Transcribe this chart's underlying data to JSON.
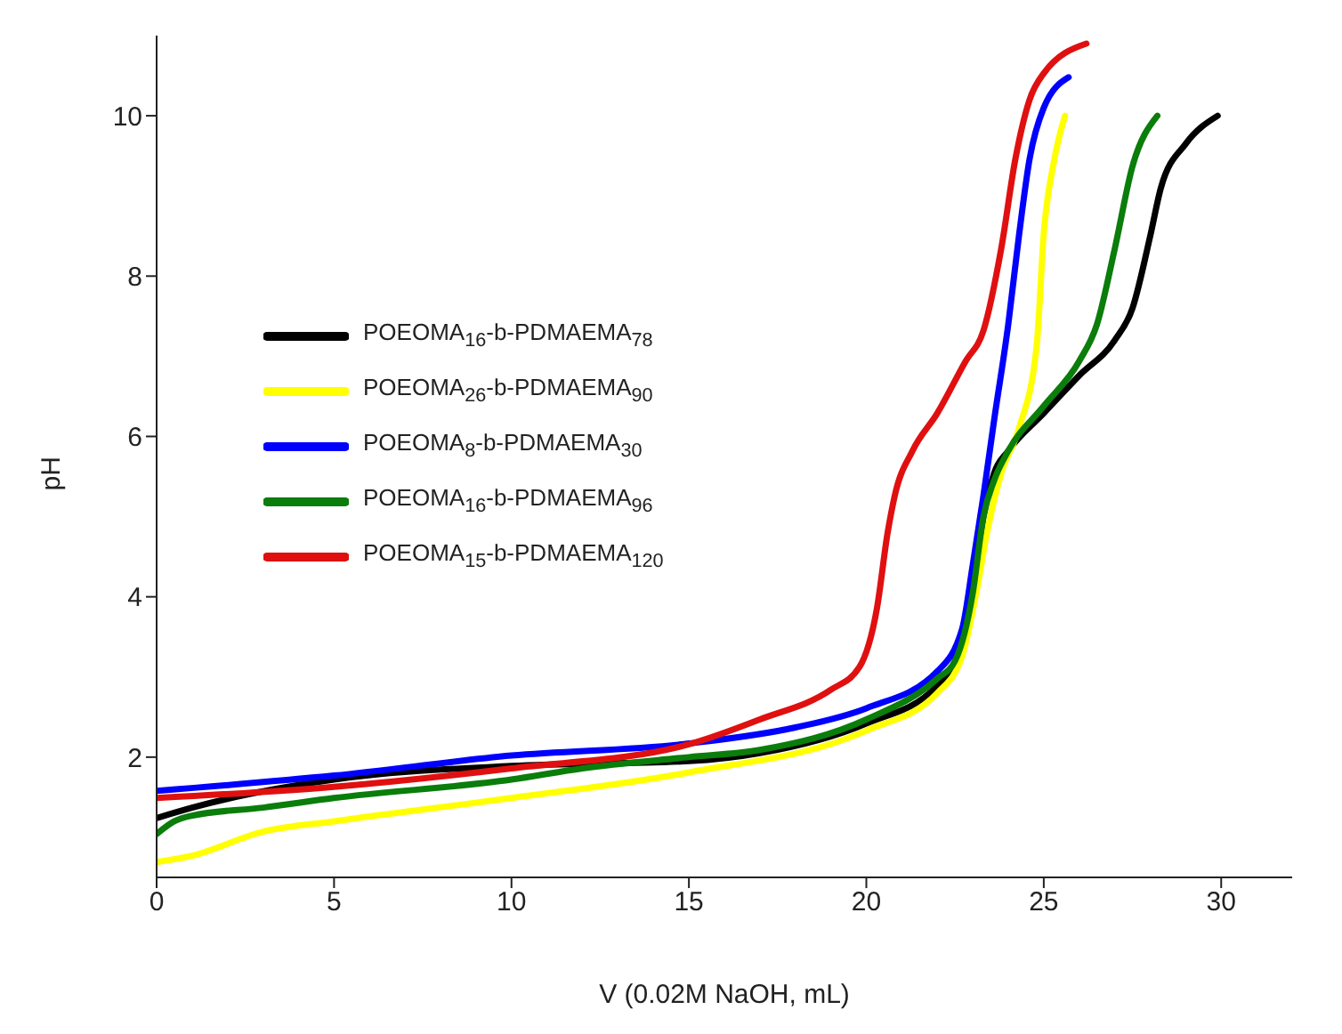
{
  "chart_data": {
    "type": "line",
    "xlabel": "V (0.02M NaOH, mL)",
    "ylabel": "pH",
    "xlim": [
      0,
      32
    ],
    "ylim": [
      0.5,
      11
    ],
    "xticks": [
      0,
      5,
      10,
      15,
      20,
      25,
      30
    ],
    "yticks": [
      2,
      4,
      6,
      8,
      10
    ],
    "grid": false,
    "legend": "left",
    "marker": "none",
    "line_style": "solid",
    "series": [
      {
        "name": "POEOMA$_{16}$-b-PDMAEMA$_{78}$",
        "color": "#000000",
        "x": [
          0,
          1,
          5,
          10,
          15,
          17,
          20,
          22,
          22.5,
          23,
          23.3,
          23.6,
          24,
          25,
          26,
          27,
          27.5,
          28,
          28.3,
          29,
          29.9
        ],
        "values": [
          1.24,
          1.37,
          1.72,
          1.89,
          1.95,
          2.05,
          2.42,
          2.89,
          3.2,
          4.05,
          5.0,
          5.54,
          5.82,
          6.29,
          6.76,
          7.2,
          7.6,
          8.5,
          9.1,
          9.65,
          10
        ]
      },
      {
        "name": "POEOMA$_{26}$-b-PDMAEMA$_{90}$",
        "color": "#ffff00",
        "x": [
          0,
          1,
          3,
          5,
          10,
          15,
          20,
          22,
          22.7,
          23.1,
          23.4,
          23.8,
          24.3,
          24.8,
          25,
          25.3,
          25.6
        ],
        "values": [
          0.69,
          0.77,
          1.07,
          1.2,
          1.49,
          1.81,
          2.33,
          2.8,
          3.26,
          4.05,
          4.8,
          5.54,
          6.1,
          7.13,
          8.53,
          9.46,
          10
        ]
      },
      {
        "name": "POEOMA$_{8}$-b-PDMAEMA$_{30}$",
        "color": "#0000ff",
        "x": [
          0,
          5,
          10,
          15,
          18,
          20,
          22,
          22.7,
          23,
          23.3,
          23.6,
          24,
          24.3,
          24.6,
          25,
          25.7
        ],
        "values": [
          1.58,
          1.77,
          2.02,
          2.17,
          2.37,
          2.61,
          3.07,
          3.6,
          4.4,
          5.26,
          6.2,
          7.4,
          8.5,
          9.46,
          10.1,
          10.48
        ]
      },
      {
        "name": "POEOMA$_{16}$-b-PDMAEMA$_{96}$",
        "color": "#0a7d0a",
        "x": [
          0,
          0.5,
          1,
          3,
          5,
          10,
          12,
          15,
          17,
          20,
          22,
          22.5,
          23,
          23.3,
          23.6,
          24,
          25,
          26,
          26.5,
          27,
          27.5,
          28.2
        ],
        "values": [
          1.04,
          1.2,
          1.27,
          1.37,
          1.49,
          1.72,
          1.86,
          2.0,
          2.09,
          2.47,
          2.98,
          3.2,
          4.05,
          5.0,
          5.45,
          5.82,
          6.38,
          6.94,
          7.4,
          8.34,
          9.37,
          10
        ]
      },
      {
        "name": "POEOMA$_{15}$-b-PDMAEMA$_{120}$",
        "color": "#e01010",
        "x": [
          0,
          5,
          10,
          15,
          17,
          19,
          19.8,
          20.3,
          20.6,
          20.8,
          21.3,
          22,
          22.8,
          23.3,
          23.8,
          24.2,
          24.6,
          25,
          26.2
        ],
        "values": [
          1.49,
          1.63,
          1.86,
          2.16,
          2.47,
          2.84,
          3.12,
          3.86,
          4.8,
          5.26,
          5.82,
          6.29,
          6.94,
          7.32,
          8.34,
          9.46,
          10.2,
          10.53,
          10.9
        ]
      }
    ]
  }
}
